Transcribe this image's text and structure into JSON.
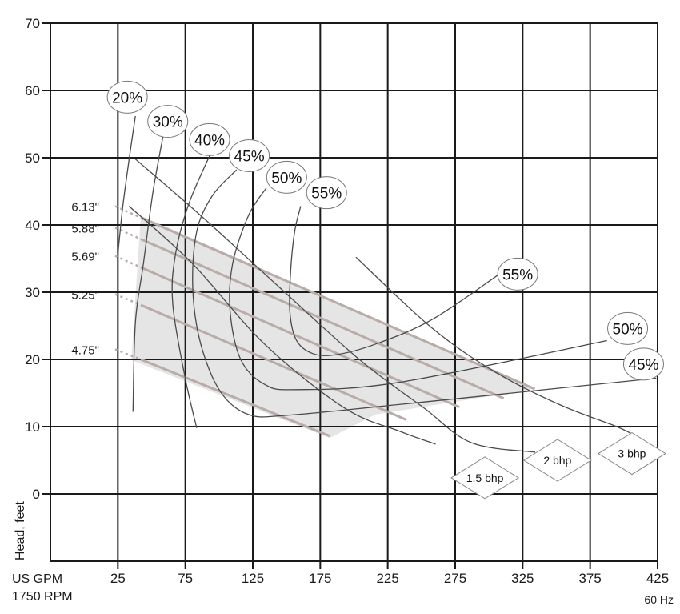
{
  "chart_data": {
    "type": "line",
    "title": "",
    "xlabel": "US GPM",
    "xlabel_sub": "1750 RPM",
    "ylabel": "Head, feet",
    "note": "60 Hz",
    "xlim": [
      -25,
      425
    ],
    "ylim": [
      -10,
      70
    ],
    "x_ticks": [
      "25",
      "75",
      "125",
      "175",
      "225",
      "275",
      "325",
      "375",
      "425"
    ],
    "y_ticks": [
      "0",
      "10",
      "20",
      "30",
      "40",
      "50",
      "60",
      "70"
    ],
    "grid": true,
    "colors": {
      "grid": "#1a1a1a",
      "impeller": "#b9aca6",
      "curve": "#4a4a4a",
      "region": "#e5e5e5"
    },
    "operating_region": [
      [
        42,
        41.4
      ],
      [
        334,
        15.6
      ],
      [
        216,
        11.8
      ],
      [
        182,
        8.3
      ],
      [
        35,
        19.9
      ]
    ],
    "impeller_curves": [
      {
        "name": "6.13\"",
        "dotted_from": [
          23,
          42.8
        ],
        "solid_from": [
          42,
          41.1
        ],
        "to": [
          334,
          15.6
        ]
      },
      {
        "name": "5.88\"",
        "dotted_from": [
          23,
          39.6
        ],
        "solid_from": [
          42,
          37.9
        ],
        "to": [
          311,
          14.2
        ]
      },
      {
        "name": "5.69\"",
        "dotted_from": [
          23,
          35.4
        ],
        "solid_from": [
          42,
          33.7
        ],
        "to": [
          278,
          12.9
        ]
      },
      {
        "name": "5.25\"",
        "dotted_from": [
          23,
          29.7
        ],
        "solid_from": [
          42,
          28.1
        ],
        "to": [
          239,
          11.0
        ]
      },
      {
        "name": "4.75\"",
        "dotted_from": [
          23,
          21.5
        ],
        "solid_from": [
          42,
          20.0
        ],
        "to": [
          182,
          8.6
        ]
      }
    ],
    "efficiency_curves": [
      {
        "name": "20%",
        "label_at": [
          32,
          59
        ],
        "points": [
          [
            38,
            56.2
          ],
          [
            33.3,
            49.7
          ],
          [
            28.5,
            42.5
          ],
          [
            25,
            35.6
          ]
        ]
      },
      {
        "name": "30%",
        "label_at": [
          62,
          55.4
        ],
        "points": [
          [
            58.6,
            53.3
          ],
          [
            51,
            44.9
          ],
          [
            43.9,
            34.2
          ],
          [
            38,
            25.5
          ],
          [
            36.2,
            12.2
          ]
        ]
      },
      {
        "name": "40%",
        "label_at": [
          93,
          52.7
        ],
        "points": [
          [
            93.5,
            50.5
          ],
          [
            77.5,
            43.1
          ],
          [
            67.5,
            35.4
          ],
          [
            65.7,
            28.2
          ],
          [
            74.6,
            17.5
          ],
          [
            83.4,
            9.8
          ]
        ]
      },
      {
        "name": "45%",
        "label_at": [
          122.4,
          50.3
        ],
        "label_end": [
          414.6,
          19.3
        ],
        "points": [
          [
            113,
            48.2
          ],
          [
            95.2,
            44.4
          ],
          [
            83.4,
            39
          ],
          [
            80.5,
            30.6
          ],
          [
            86.4,
            22.3
          ],
          [
            101,
            15.2
          ],
          [
            121.8,
            11.8
          ],
          [
            151.3,
            11.7
          ],
          [
            234,
            13.3
          ],
          [
            424,
            17.2
          ]
        ]
      },
      {
        "name": "50%",
        "label_at": [
          150.1,
          47.1
        ],
        "label_end": [
          402.8,
          24.6
        ],
        "points": [
          [
            135,
            45.5
          ],
          [
            121.8,
            41.4
          ],
          [
            110,
            34.2
          ],
          [
            108.2,
            27.1
          ],
          [
            116,
            20
          ],
          [
            133.6,
            16.3
          ],
          [
            157.2,
            15.5
          ],
          [
            234,
            16.6
          ],
          [
            387.5,
            22.8
          ]
        ]
      },
      {
        "name": "55%",
        "label_at": [
          179.7,
          44.8
        ],
        "label_end": [
          321.3,
          32.7
        ],
        "points": [
          [
            160.5,
            42.8
          ],
          [
            156,
            39
          ],
          [
            153,
            33
          ],
          [
            152.5,
            27
          ],
          [
            157.2,
            22.9
          ],
          [
            169,
            20.9
          ],
          [
            186.7,
            20.7
          ],
          [
            216.3,
            22.3
          ],
          [
            257.6,
            25.9
          ],
          [
            307.8,
            32.7
          ]
        ]
      }
    ],
    "power_curves": [
      {
        "name": "1.5 bhp",
        "label_at": [
          297,
          2.4
        ],
        "points": [
          [
            33.3,
            42.8
          ],
          [
            80.5,
            34.2
          ],
          [
            133.6,
            22.3
          ],
          [
            192.7,
            12.8
          ],
          [
            234,
            9.3
          ],
          [
            260.5,
            7.4
          ]
        ]
      },
      {
        "name": "2 bhp",
        "label_at": [
          350.8,
          5
        ],
        "points": [
          [
            38,
            49.8
          ],
          [
            86.4,
            41.4
          ],
          [
            145.4,
            30.6
          ],
          [
            204.5,
            19.9
          ],
          [
            251.7,
            12.8
          ],
          [
            287.1,
            7.6
          ],
          [
            334.3,
            6.2
          ]
        ]
      },
      {
        "name": "3 bhp",
        "label_at": [
          406,
          6
        ],
        "points": [
          [
            201.5,
            35.2
          ],
          [
            257.6,
            24.7
          ],
          [
            304.8,
            18.1
          ],
          [
            352,
            13.3
          ],
          [
            393.4,
            10.1
          ],
          [
            406,
            8.9
          ]
        ]
      }
    ]
  }
}
